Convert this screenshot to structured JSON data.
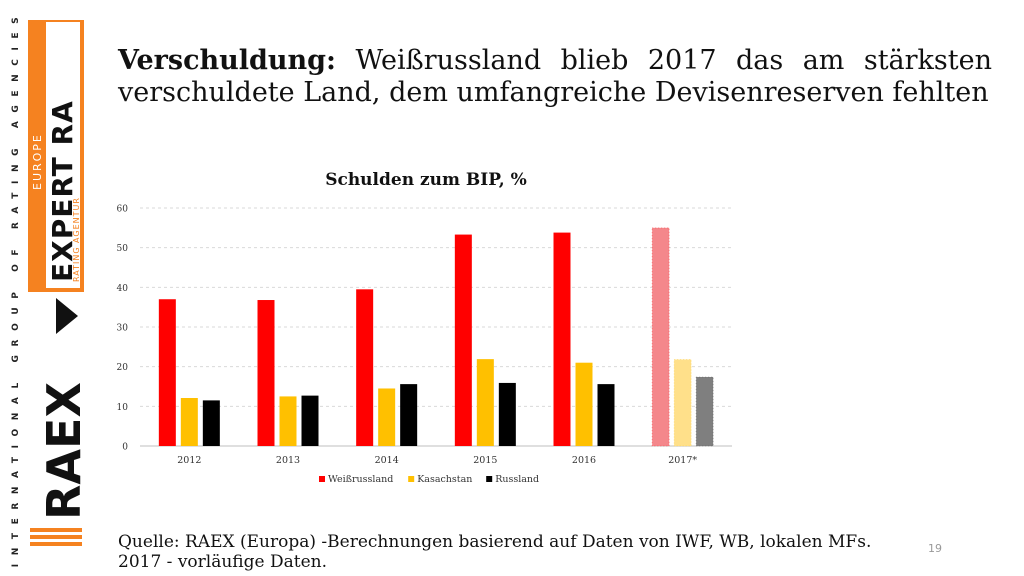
{
  "brand": {
    "tagline": "INTERNATIONAL GROUP OF RATING AGENCIES",
    "logo_text": "RAEX",
    "agency_name": "EXPERT RA",
    "agency_sub": "RATING AGENTUR",
    "region": "EUROPE",
    "colors": {
      "orange": "#F58220",
      "black": "#111111"
    }
  },
  "slide": {
    "title_bold": "Verschuldung:",
    "title_rest": "Weißrussland blieb 2017 das am stärksten verschuldete Land, dem umfangreiche Devisenreserven fehlten",
    "source": "Quelle: RAEX (Europa) -Berechnungen basierend auf Daten von IWF, WB, lokalen MFs. 2017 - vorläufige Daten.",
    "page_number": "19"
  },
  "chart_data": {
    "type": "bar",
    "title": "Schulden zum BIP, %",
    "categories": [
      "2012",
      "2013",
      "2014",
      "2015",
      "2016",
      "2017*"
    ],
    "series": [
      {
        "name": "Weißrussland",
        "values": [
          37,
          36.8,
          39.5,
          53.3,
          53.8,
          55
        ],
        "color": "#FF0000",
        "forecast_color": "#F4878B"
      },
      {
        "name": "Kasachstan",
        "values": [
          12.1,
          12.5,
          14.5,
          21.9,
          21,
          21.8
        ],
        "color": "#FFC000",
        "forecast_color": "#FFE08A"
      },
      {
        "name": "Russland",
        "values": [
          11.5,
          12.7,
          15.6,
          15.9,
          15.6,
          17.4
        ],
        "color": "#000000",
        "forecast_color": "#7F7F7F"
      }
    ],
    "forecast_category": "2017*",
    "ylim": [
      0,
      60
    ],
    "yticks": [
      0,
      10,
      20,
      30,
      40,
      50,
      60
    ],
    "grid": true,
    "legend": "bottom"
  }
}
